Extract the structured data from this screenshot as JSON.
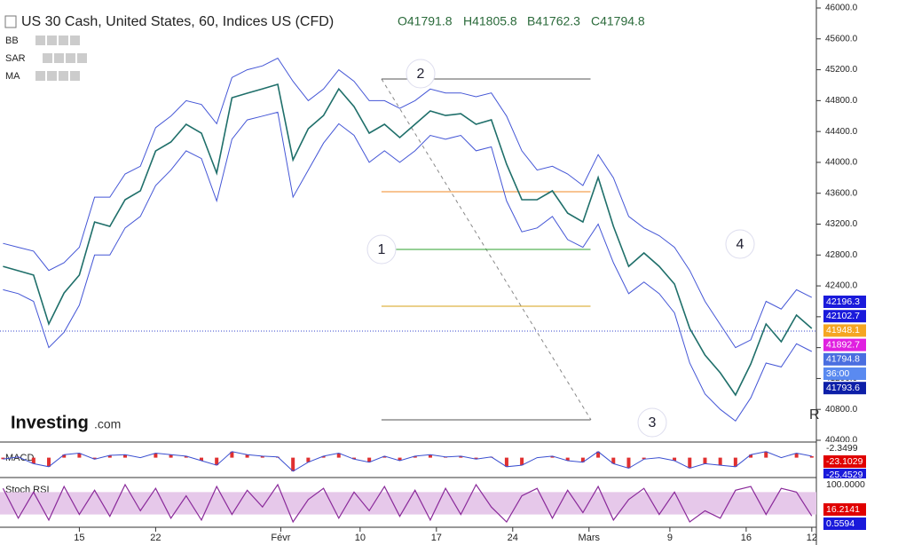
{
  "header": {
    "title": "US 30 Cash, United States, 60, Indices US (CFD)",
    "ohlc": [
      "O41791.8",
      "H41805.8",
      "B41762.3",
      "C41794.8"
    ],
    "indicators": [
      "BB",
      "SAR",
      "MA"
    ]
  },
  "watermark": {
    "brand": "Investing",
    "suffix": ".com"
  },
  "corner_letter": "R",
  "chart_data": {
    "type": "line",
    "x": [
      0,
      1,
      2,
      3,
      4,
      5,
      6,
      7,
      8,
      9,
      10,
      11,
      12,
      13,
      14,
      15,
      16,
      17,
      18,
      19,
      20,
      21,
      22,
      23,
      24,
      25,
      26,
      27,
      28,
      29,
      30,
      31,
      32,
      33,
      34,
      35,
      36,
      37,
      38,
      39,
      40,
      41,
      42,
      43,
      44,
      45,
      46,
      47,
      48,
      49,
      50,
      51,
      52,
      53
    ],
    "series": [
      {
        "color": "#1f6f6a",
        "values": [
          42653,
          42596,
          42540,
          41906,
          42308,
          42540,
          43228,
          43171,
          43516,
          43631,
          44148,
          44264,
          44494,
          44379,
          43861,
          44838,
          44896,
          44953,
          45011,
          44033,
          44436,
          44608,
          44953,
          44723,
          44379,
          44494,
          44321,
          44494,
          44666,
          44608,
          44631,
          44494,
          44551,
          43976,
          43516,
          43516,
          43631,
          43343,
          43228,
          43804,
          43171,
          42653,
          42826,
          42653,
          42424,
          41849,
          41504,
          41274,
          40986,
          41389,
          41906,
          41676,
          42021,
          41849
        ]
      },
      {
        "color": "#4456d6",
        "values": [
          42950,
          42900,
          42850,
          42600,
          42700,
          42900,
          43550,
          43550,
          43850,
          43950,
          44450,
          44600,
          44800,
          44750,
          44500,
          45100,
          45200,
          45250,
          45350,
          45050,
          44800,
          44950,
          45200,
          45050,
          44800,
          44800,
          44700,
          44800,
          44950,
          44900,
          44900,
          44850,
          44900,
          44600,
          44150,
          43900,
          43950,
          43850,
          43700,
          44100,
          43800,
          43300,
          43150,
          43050,
          42900,
          42600,
          42200,
          41900,
          41600,
          41700,
          42200,
          42100,
          42350,
          42250
        ]
      },
      {
        "color": "#4456d6",
        "values": [
          42350,
          42300,
          42200,
          41600,
          41800,
          42150,
          42800,
          42800,
          43150,
          43300,
          43700,
          43900,
          44150,
          44050,
          43500,
          44300,
          44550,
          44600,
          44650,
          43550,
          43900,
          44250,
          44500,
          44350,
          44000,
          44150,
          44000,
          44150,
          44350,
          44300,
          44350,
          44150,
          44200,
          43500,
          43100,
          43150,
          43300,
          43000,
          42900,
          43200,
          42700,
          42300,
          42450,
          42300,
          42050,
          41400,
          41000,
          40800,
          40650,
          40950,
          41400,
          41350,
          41650,
          41550
        ]
      }
    ],
    "xlim": [
      -0.2,
      53.3
    ],
    "xticks": [
      {
        "value": 5,
        "label": "15"
      },
      {
        "value": 10,
        "label": "22"
      },
      {
        "value": 18.2,
        "label": "Févr"
      },
      {
        "value": 23.4,
        "label": "10"
      },
      {
        "value": 28.4,
        "label": "17"
      },
      {
        "value": 33.4,
        "label": "24"
      },
      {
        "value": 38.4,
        "label": "Mars"
      },
      {
        "value": 43.7,
        "label": "9"
      },
      {
        "value": 48.7,
        "label": "16"
      },
      {
        "value": 53,
        "label": "12"
      }
    ],
    "ylim": [
      40400,
      46000
    ],
    "yticks": [
      {
        "value": 40400,
        "label": "40400.0"
      },
      {
        "value": 40800,
        "label": "40800.0"
      },
      {
        "value": 41200,
        "label": "41200.0"
      },
      {
        "value": 41600,
        "label": "41600.0"
      },
      {
        "value": 42000,
        "label": "42000.0"
      },
      {
        "value": 42400,
        "label": "42400.0"
      },
      {
        "value": 42800,
        "label": "42800.0"
      },
      {
        "value": 43200,
        "label": "43200.0"
      },
      {
        "value": 43600,
        "label": "43600.0"
      },
      {
        "value": 44000,
        "label": "44000.0"
      },
      {
        "value": 44400,
        "label": "44400.0"
      },
      {
        "value": 44800,
        "label": "44800.0"
      },
      {
        "value": 45200,
        "label": "45200.0"
      },
      {
        "value": 45600,
        "label": "45600.0"
      },
      {
        "value": 46000,
        "label": "46000.0"
      }
    ],
    "current_line": 41814,
    "price_badges": [
      {
        "value": 42196.3,
        "color": "#1a1adb"
      },
      {
        "value": 42102.7,
        "color": "#1a1adb"
      },
      {
        "value": 41948.1,
        "color": "#f5a623"
      },
      {
        "value": 41892.7,
        "color": "#e020e0"
      },
      {
        "value": 41794.8,
        "color": "#4a6ee0"
      },
      {
        "text": "36:00",
        "color": "#5a8af0"
      },
      {
        "value": 41793.6,
        "color": "#0d1fa8"
      }
    ],
    "fib_levels": [
      {
        "value": 45080,
        "color": "#555555"
      },
      {
        "value": 43620,
        "color": "#f08a24"
      },
      {
        "value": 42872,
        "color": "#2ca02c"
      },
      {
        "value": 42136,
        "color": "#d4a017"
      },
      {
        "value": 40664,
        "color": "#555555"
      }
    ],
    "fib_range": [
      24.8,
      38.5
    ],
    "wave_labels": [
      "1",
      "2",
      "3",
      "4"
    ],
    "macd": {
      "label": "MACD",
      "color": "#3a4fd0",
      "ylim": [
        -120,
        80
      ],
      "values": [
        -10,
        5,
        -40,
        -60,
        20,
        30,
        -10,
        15,
        20,
        0,
        30,
        20,
        10,
        -20,
        -50,
        40,
        20,
        10,
        5,
        -90,
        -30,
        10,
        30,
        -10,
        -30,
        10,
        -20,
        10,
        20,
        5,
        10,
        -10,
        5,
        -60,
        -50,
        0,
        10,
        -20,
        -30,
        40,
        -40,
        -70,
        -10,
        0,
        -20,
        -70,
        -40,
        -50,
        -60,
        20,
        40,
        0,
        30,
        10
      ],
      "badges": [
        {
          "value": -2.3499,
          "color": "#ffffff"
        },
        {
          "value": -23.1029,
          "color": "#e00000"
        },
        {
          "value": -25.4529,
          "color": "#1a1adb"
        }
      ]
    },
    "stoch": {
      "label": "Stoch RSI",
      "color": "#8a2a9a",
      "ylim": [
        0,
        100
      ],
      "band": [
        20,
        80
      ],
      "values": [
        90,
        10,
        80,
        5,
        95,
        20,
        85,
        15,
        100,
        30,
        90,
        10,
        70,
        5,
        95,
        20,
        85,
        40,
        100,
        0,
        60,
        90,
        10,
        80,
        30,
        95,
        15,
        85,
        5,
        90,
        20,
        100,
        40,
        0,
        70,
        90,
        10,
        85,
        25,
        95,
        5,
        60,
        90,
        20,
        80,
        0,
        30,
        10,
        85,
        95,
        20,
        90,
        80,
        16
      ],
      "badges": [
        {
          "value": 100,
          "label": "100.0000",
          "color": "#ffffff"
        },
        {
          "value": 16.2141,
          "label": "16.2141",
          "color": "#e00000"
        },
        {
          "value": 0.5594,
          "label": "0.5594",
          "color": "#1a1adb"
        }
      ]
    }
  }
}
